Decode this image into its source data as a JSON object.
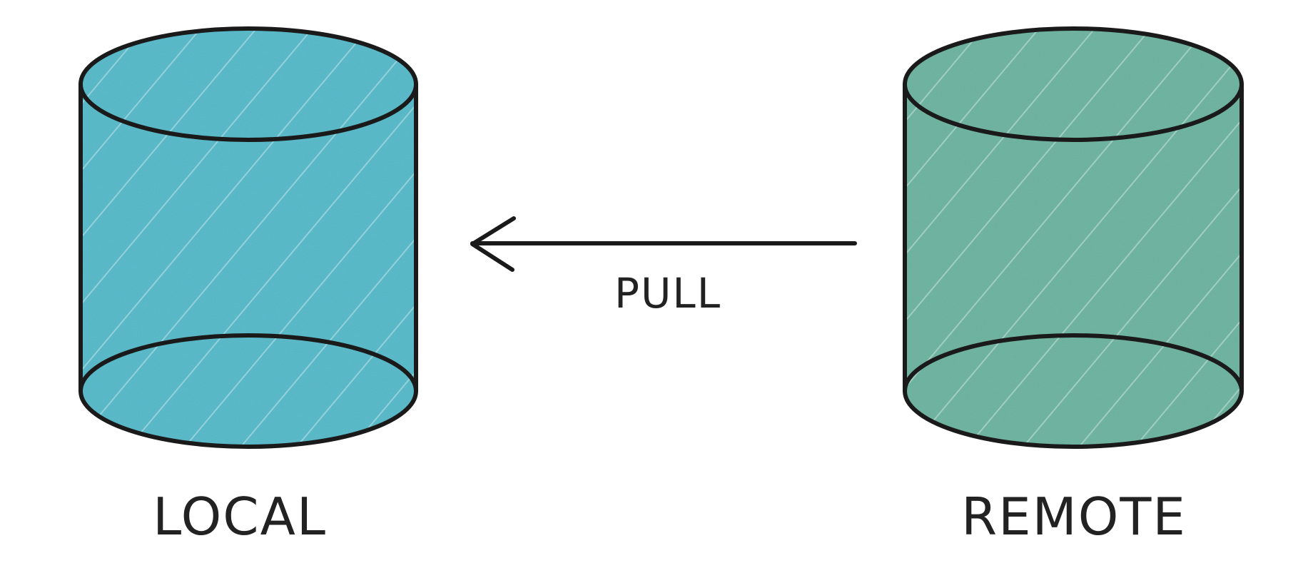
{
  "diagram": {
    "local": {
      "label": "LOCAL",
      "fill_color": "#4fb8c8"
    },
    "remote": {
      "label": "REMOTE",
      "fill_color": "#67b29d"
    },
    "pull": {
      "label": "PULL",
      "direction": "remote-to-local"
    },
    "stroke_color": "#1a1a1a"
  }
}
